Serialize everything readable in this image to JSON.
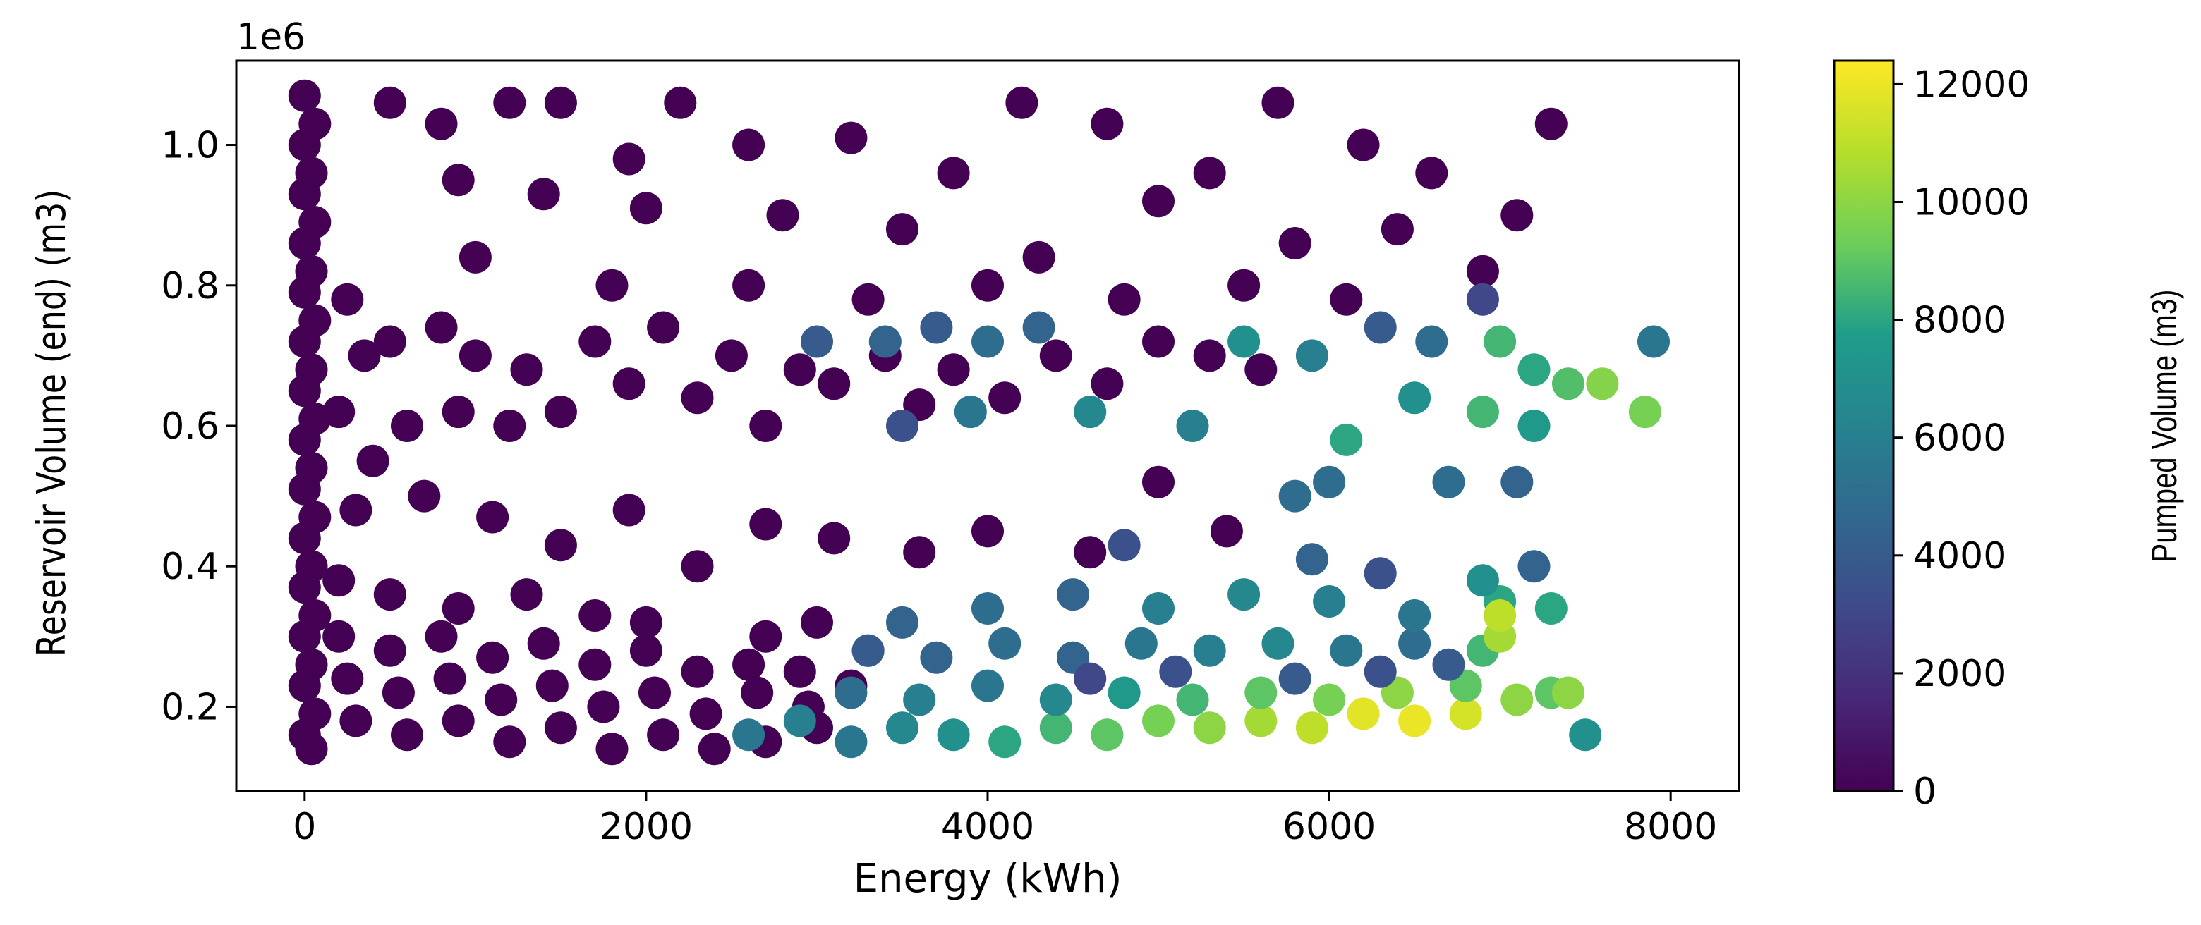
{
  "chart_data": {
    "type": "scatter",
    "title": "",
    "xlabel": "Energy (kWh)",
    "ylabel": "Reservoir Volume (end) (m3)",
    "y_offset_label": "1e6",
    "colorbar_label": "Pumped Volume (m3)",
    "colormap": "viridis",
    "colormap_stops": [
      "#440154",
      "#482777",
      "#3f4a8a",
      "#31678e",
      "#26838f",
      "#1f9d8a",
      "#6cce5a",
      "#b6de2b",
      "#fee825"
    ],
    "xlim": [
      -400,
      8400
    ],
    "ylim": [
      0.08,
      1.12
    ],
    "clim": [
      0,
      12400
    ],
    "xticks": [
      0,
      2000,
      4000,
      6000,
      8000
    ],
    "xtick_labels": [
      "0",
      "2000",
      "4000",
      "6000",
      "8000"
    ],
    "yticks": [
      0.2,
      0.4,
      0.6,
      0.8,
      1.0
    ],
    "ytick_labels": [
      "0.2",
      "0.4",
      "0.6",
      "0.8",
      "1.0"
    ],
    "cticks": [
      0,
      2000,
      4000,
      6000,
      8000,
      10000,
      12000
    ],
    "ctick_labels": [
      "0",
      "2000",
      "4000",
      "6000",
      "8000",
      "10000",
      "12000"
    ],
    "grid": false,
    "series": [
      {
        "points": [
          [
            0,
            1.07,
            0
          ],
          [
            0,
            1.0,
            0
          ],
          [
            0,
            0.93,
            0
          ],
          [
            0,
            0.86,
            0
          ],
          [
            0,
            0.79,
            0
          ],
          [
            0,
            0.72,
            0
          ],
          [
            0,
            0.65,
            0
          ],
          [
            0,
            0.58,
            0
          ],
          [
            0,
            0.51,
            0
          ],
          [
            0,
            0.44,
            0
          ],
          [
            0,
            0.37,
            0
          ],
          [
            0,
            0.3,
            0
          ],
          [
            0,
            0.23,
            0
          ],
          [
            0,
            0.16,
            0
          ],
          [
            60,
            1.03,
            0
          ],
          [
            40,
            0.96,
            0
          ],
          [
            60,
            0.89,
            0
          ],
          [
            40,
            0.82,
            0
          ],
          [
            60,
            0.75,
            0
          ],
          [
            40,
            0.68,
            0
          ],
          [
            60,
            0.61,
            0
          ],
          [
            40,
            0.54,
            0
          ],
          [
            60,
            0.47,
            0
          ],
          [
            40,
            0.4,
            0
          ],
          [
            60,
            0.33,
            0
          ],
          [
            40,
            0.26,
            0
          ],
          [
            60,
            0.19,
            0
          ],
          [
            40,
            0.14,
            0
          ],
          [
            250,
            0.78,
            0
          ],
          [
            350,
            0.7,
            0
          ],
          [
            500,
            0.72,
            0
          ],
          [
            800,
            0.74,
            0
          ],
          [
            1000,
            0.7,
            0
          ],
          [
            1300,
            0.68,
            0
          ],
          [
            200,
            0.62,
            0
          ],
          [
            600,
            0.6,
            0
          ],
          [
            900,
            0.62,
            0
          ],
          [
            1200,
            0.6,
            0
          ],
          [
            1500,
            0.62,
            0
          ],
          [
            400,
            0.55,
            0
          ],
          [
            1700,
            0.72,
            0
          ],
          [
            1900,
            0.66,
            0
          ],
          [
            2100,
            0.74,
            0
          ],
          [
            2300,
            0.64,
            0
          ],
          [
            2500,
            0.7,
            0
          ],
          [
            2700,
            0.6,
            0
          ],
          [
            2900,
            0.68,
            0
          ],
          [
            3100,
            0.66,
            0
          ],
          [
            3400,
            0.7,
            0
          ],
          [
            3600,
            0.63,
            0
          ],
          [
            3800,
            0.68,
            0
          ],
          [
            4100,
            0.64,
            0
          ],
          [
            4400,
            0.7,
            0
          ],
          [
            4700,
            0.66,
            0
          ],
          [
            5000,
            0.72,
            0
          ],
          [
            5300,
            0.7,
            0
          ],
          [
            5600,
            0.68,
            0
          ],
          [
            500,
            1.06,
            0
          ],
          [
            800,
            1.03,
            0
          ],
          [
            1200,
            1.06,
            0
          ],
          [
            1500,
            1.06,
            0
          ],
          [
            1900,
            0.98,
            0
          ],
          [
            2200,
            1.06,
            0
          ],
          [
            2600,
            1.0,
            0
          ],
          [
            3200,
            1.01,
            0
          ],
          [
            3800,
            0.96,
            0
          ],
          [
            4200,
            1.06,
            0
          ],
          [
            4700,
            1.03,
            0
          ],
          [
            5300,
            0.96,
            0
          ],
          [
            5700,
            1.06,
            0
          ],
          [
            6200,
            1.0,
            0
          ],
          [
            6600,
            0.96,
            0
          ],
          [
            7300,
            1.03,
            0
          ],
          [
            900,
            0.95,
            0
          ],
          [
            1400,
            0.93,
            0
          ],
          [
            2000,
            0.91,
            0
          ],
          [
            2800,
            0.9,
            0
          ],
          [
            3500,
            0.88,
            0
          ],
          [
            4300,
            0.84,
            0
          ],
          [
            5000,
            0.92,
            0
          ],
          [
            5800,
            0.86,
            0
          ],
          [
            6400,
            0.88,
            0
          ],
          [
            6900,
            0.82,
            0
          ],
          [
            7100,
            0.9,
            0
          ],
          [
            1000,
            0.84,
            0
          ],
          [
            1800,
            0.8,
            0
          ],
          [
            2600,
            0.8,
            0
          ],
          [
            3300,
            0.78,
            0
          ],
          [
            4000,
            0.8,
            0
          ],
          [
            4800,
            0.78,
            0
          ],
          [
            5500,
            0.8,
            0
          ],
          [
            6100,
            0.78,
            0
          ],
          [
            300,
            0.48,
            0
          ],
          [
            700,
            0.5,
            0
          ],
          [
            1100,
            0.47,
            0
          ],
          [
            1500,
            0.43,
            0
          ],
          [
            1900,
            0.48,
            0
          ],
          [
            2300,
            0.4,
            0
          ],
          [
            2700,
            0.46,
            0
          ],
          [
            3100,
            0.44,
            0
          ],
          [
            3600,
            0.42,
            0
          ],
          [
            4000,
            0.45,
            0
          ],
          [
            4600,
            0.42,
            0
          ],
          [
            5000,
            0.52,
            0
          ],
          [
            5400,
            0.45,
            0
          ],
          [
            200,
            0.38,
            0
          ],
          [
            500,
            0.36,
            0
          ],
          [
            900,
            0.34,
            0
          ],
          [
            1300,
            0.36,
            0
          ],
          [
            1700,
            0.33,
            0
          ],
          [
            2000,
            0.32,
            0
          ],
          [
            200,
            0.3,
            0
          ],
          [
            500,
            0.28,
            0
          ],
          [
            800,
            0.3,
            0
          ],
          [
            1100,
            0.27,
            0
          ],
          [
            1400,
            0.29,
            0
          ],
          [
            1700,
            0.26,
            0
          ],
          [
            2000,
            0.28,
            0
          ],
          [
            2300,
            0.25,
            0
          ],
          [
            250,
            0.24,
            0
          ],
          [
            550,
            0.22,
            0
          ],
          [
            850,
            0.24,
            0
          ],
          [
            1150,
            0.21,
            0
          ],
          [
            1450,
            0.23,
            0
          ],
          [
            1750,
            0.2,
            0
          ],
          [
            2050,
            0.22,
            0
          ],
          [
            2350,
            0.19,
            0
          ],
          [
            2650,
            0.22,
            0
          ],
          [
            2950,
            0.2,
            0
          ],
          [
            300,
            0.18,
            0
          ],
          [
            600,
            0.16,
            0
          ],
          [
            900,
            0.18,
            0
          ],
          [
            1200,
            0.15,
            0
          ],
          [
            1500,
            0.17,
            0
          ],
          [
            1800,
            0.14,
            0
          ],
          [
            2100,
            0.16,
            0
          ],
          [
            2400,
            0.14,
            0
          ],
          [
            2700,
            0.15,
            0
          ],
          [
            3000,
            0.17,
            0
          ],
          [
            2700,
            0.3,
            0
          ],
          [
            3000,
            0.32,
            0
          ],
          [
            3300,
            0.28,
            0
          ],
          [
            2600,
            0.26,
            0
          ],
          [
            2900,
            0.25,
            0
          ],
          [
            3200,
            0.23,
            0
          ],
          [
            3000,
            0.72,
            4000
          ],
          [
            3400,
            0.72,
            4500
          ],
          [
            3700,
            0.74,
            4000
          ],
          [
            4000,
            0.72,
            5000
          ],
          [
            4300,
            0.74,
            4500
          ],
          [
            3500,
            0.6,
            3500
          ],
          [
            3900,
            0.62,
            5500
          ],
          [
            4600,
            0.62,
            6500
          ],
          [
            5200,
            0.6,
            6000
          ],
          [
            5500,
            0.72,
            7000
          ],
          [
            5900,
            0.7,
            6000
          ],
          [
            6300,
            0.74,
            4000
          ],
          [
            6600,
            0.72,
            5000
          ],
          [
            6900,
            0.78,
            3000
          ],
          [
            7000,
            0.72,
            8500
          ],
          [
            7200,
            0.68,
            8000
          ],
          [
            7400,
            0.66,
            8800
          ],
          [
            7600,
            0.66,
            9800
          ],
          [
            7900,
            0.72,
            5500
          ],
          [
            7850,
            0.62,
            9500
          ],
          [
            6900,
            0.62,
            8500
          ],
          [
            7200,
            0.6,
            7500
          ],
          [
            6500,
            0.64,
            7000
          ],
          [
            6700,
            0.52,
            5000
          ],
          [
            7100,
            0.52,
            4500
          ],
          [
            6000,
            0.52,
            5000
          ],
          [
            5800,
            0.5,
            5000
          ],
          [
            6100,
            0.58,
            8000
          ],
          [
            2600,
            0.16,
            5500
          ],
          [
            2900,
            0.18,
            6000
          ],
          [
            3200,
            0.15,
            5500
          ],
          [
            3500,
            0.17,
            6500
          ],
          [
            3800,
            0.16,
            7000
          ],
          [
            4100,
            0.15,
            8000
          ],
          [
            4400,
            0.17,
            8500
          ],
          [
            4700,
            0.16,
            9000
          ],
          [
            5000,
            0.18,
            9500
          ],
          [
            5300,
            0.17,
            10000
          ],
          [
            5600,
            0.18,
            10500
          ],
          [
            5900,
            0.17,
            11000
          ],
          [
            6200,
            0.19,
            11800
          ],
          [
            6500,
            0.18,
            12000
          ],
          [
            6800,
            0.19,
            11500
          ],
          [
            7100,
            0.21,
            10000
          ],
          [
            7300,
            0.22,
            9000
          ],
          [
            7500,
            0.16,
            7000
          ],
          [
            3200,
            0.22,
            5000
          ],
          [
            3600,
            0.21,
            6000
          ],
          [
            4000,
            0.23,
            5500
          ],
          [
            4400,
            0.21,
            6500
          ],
          [
            4800,
            0.22,
            7500
          ],
          [
            5200,
            0.21,
            8500
          ],
          [
            5600,
            0.22,
            9000
          ],
          [
            6000,
            0.21,
            9500
          ],
          [
            6400,
            0.22,
            10000
          ],
          [
            6800,
            0.23,
            9000
          ],
          [
            3300,
            0.28,
            4000
          ],
          [
            3700,
            0.27,
            4500
          ],
          [
            4100,
            0.29,
            5000
          ],
          [
            4500,
            0.27,
            4500
          ],
          [
            4900,
            0.29,
            5500
          ],
          [
            5300,
            0.28,
            6000
          ],
          [
            5700,
            0.29,
            6500
          ],
          [
            6100,
            0.28,
            5500
          ],
          [
            6500,
            0.29,
            5000
          ],
          [
            6900,
            0.28,
            8500
          ],
          [
            3500,
            0.32,
            4500
          ],
          [
            4000,
            0.34,
            5000
          ],
          [
            4500,
            0.36,
            4500
          ],
          [
            5000,
            0.34,
            6000
          ],
          [
            5500,
            0.36,
            6500
          ],
          [
            6000,
            0.35,
            6000
          ],
          [
            6500,
            0.33,
            5500
          ],
          [
            7000,
            0.35,
            8000
          ],
          [
            7300,
            0.34,
            8000
          ],
          [
            4600,
            0.24,
            3000
          ],
          [
            5100,
            0.25,
            3500
          ],
          [
            5800,
            0.24,
            4000
          ],
          [
            6300,
            0.25,
            3500
          ],
          [
            6700,
            0.26,
            4000
          ],
          [
            5900,
            0.41,
            4500
          ],
          [
            6300,
            0.39,
            3500
          ],
          [
            6900,
            0.38,
            7000
          ],
          [
            7200,
            0.4,
            4500
          ],
          [
            4800,
            0.43,
            3500
          ],
          [
            7000,
            0.3,
            10500
          ],
          [
            7000,
            0.33,
            11000
          ],
          [
            7400,
            0.22,
            10000
          ]
        ]
      }
    ]
  }
}
